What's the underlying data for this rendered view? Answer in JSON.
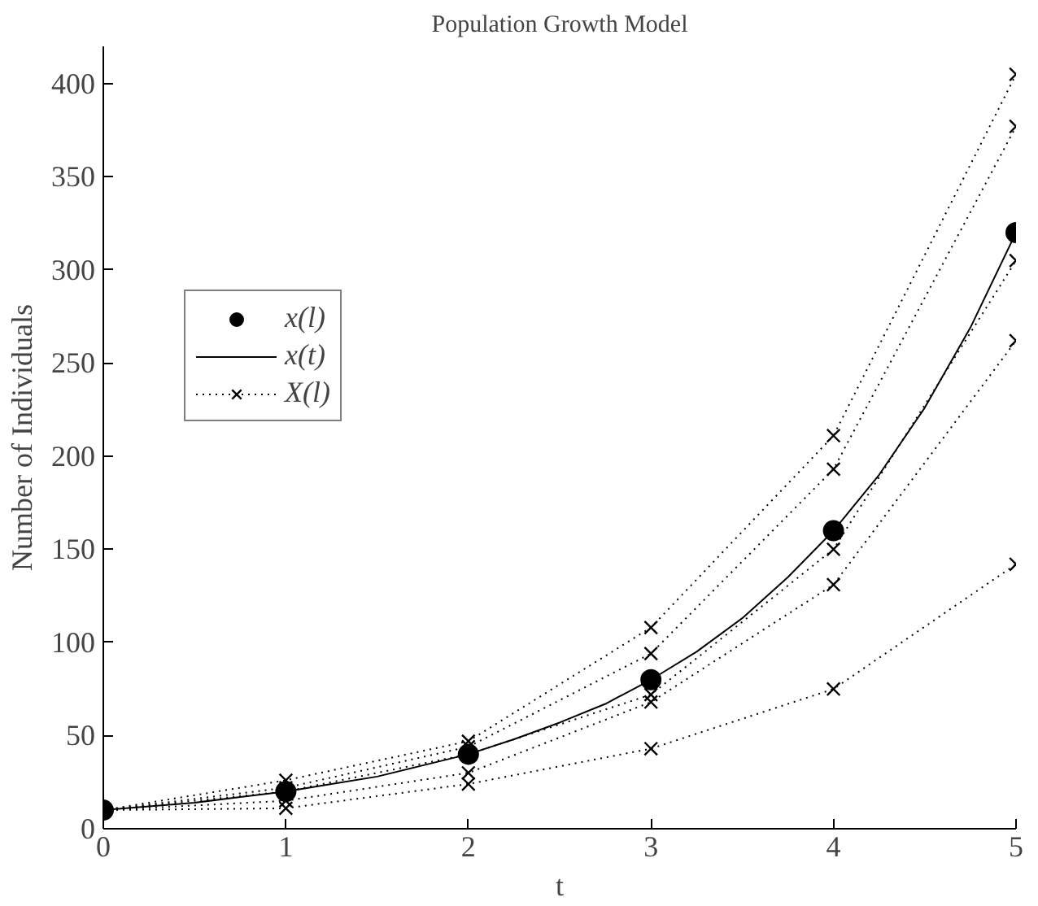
{
  "chart_data": {
    "type": "line",
    "title": "Population Growth Model",
    "xlabel": "t",
    "ylabel": "Number of Individuals",
    "x": [
      0,
      1,
      2,
      3,
      4,
      5
    ],
    "xlim": [
      0,
      5
    ],
    "xticks": [
      0,
      1,
      2,
      3,
      4,
      5
    ],
    "ylim": [
      0,
      420
    ],
    "yticks": [
      0,
      50,
      100,
      150,
      200,
      250,
      300,
      350,
      400
    ],
    "grid": false,
    "legend": "top left",
    "series": [
      {
        "name": "x(l)",
        "type": "scatter",
        "marker": "circle",
        "color": "#000000",
        "values": [
          10,
          20,
          40,
          80,
          160,
          320
        ]
      },
      {
        "name": "x(t)",
        "line_style": "solid",
        "marker": "none",
        "color": "#000000",
        "x": [
          0,
          0.25,
          0.5,
          0.75,
          1,
          1.25,
          1.5,
          1.75,
          2,
          2.25,
          2.5,
          2.75,
          3,
          3.25,
          3.5,
          3.75,
          4,
          4.25,
          4.5,
          4.75,
          5
        ],
        "values": [
          10,
          12,
          14,
          17,
          20,
          24,
          28,
          34,
          40,
          48,
          57,
          67,
          80,
          95,
          113,
          135,
          160,
          190,
          226,
          269,
          320
        ]
      },
      {
        "name": "X(l)",
        "line_style": "dotted",
        "marker": "cross",
        "color": "#000000",
        "values": [
          10,
          26,
          47,
          108,
          211,
          405
        ]
      },
      {
        "line_style": "dotted",
        "marker": "cross",
        "color": "#000000",
        "values": [
          10,
          22,
          44,
          94,
          193,
          377
        ]
      },
      {
        "line_style": "dotted",
        "marker": "cross",
        "color": "#000000",
        "values": [
          10,
          20,
          40,
          72,
          150,
          305
        ]
      },
      {
        "line_style": "dotted",
        "marker": "cross",
        "color": "#000000",
        "values": [
          10,
          15,
          30,
          68,
          131,
          262
        ]
      },
      {
        "line_style": "dotted",
        "marker": "cross",
        "color": "#000000",
        "values": [
          10,
          11,
          24,
          43,
          75,
          142
        ]
      }
    ]
  }
}
